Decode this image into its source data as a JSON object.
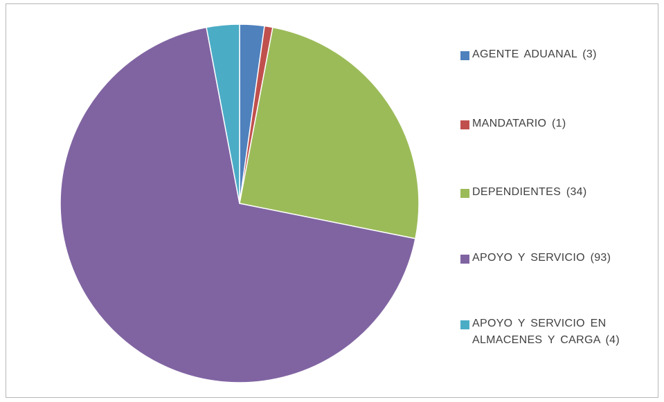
{
  "chart_data": {
    "type": "pie",
    "title": "",
    "start_angle_deg": 0,
    "direction": "clockwise",
    "slices": [
      {
        "label": "AGENTE ADUANAL (3)",
        "value": 3,
        "color": "#4F81BD"
      },
      {
        "label": "MANDATARIO (1)",
        "value": 1,
        "color": "#C0504D"
      },
      {
        "label": "DEPENDIENTES (34)",
        "value": 34,
        "color": "#9BBB59"
      },
      {
        "label": "APOYO Y SERVICIO (93)",
        "value": 93,
        "color": "#8064A2"
      },
      {
        "label": "APOYO Y SERVICIO EN ALMACENES Y CARGA (4)",
        "value": 4,
        "color": "#4BACC6"
      }
    ],
    "legend_position": "right"
  }
}
